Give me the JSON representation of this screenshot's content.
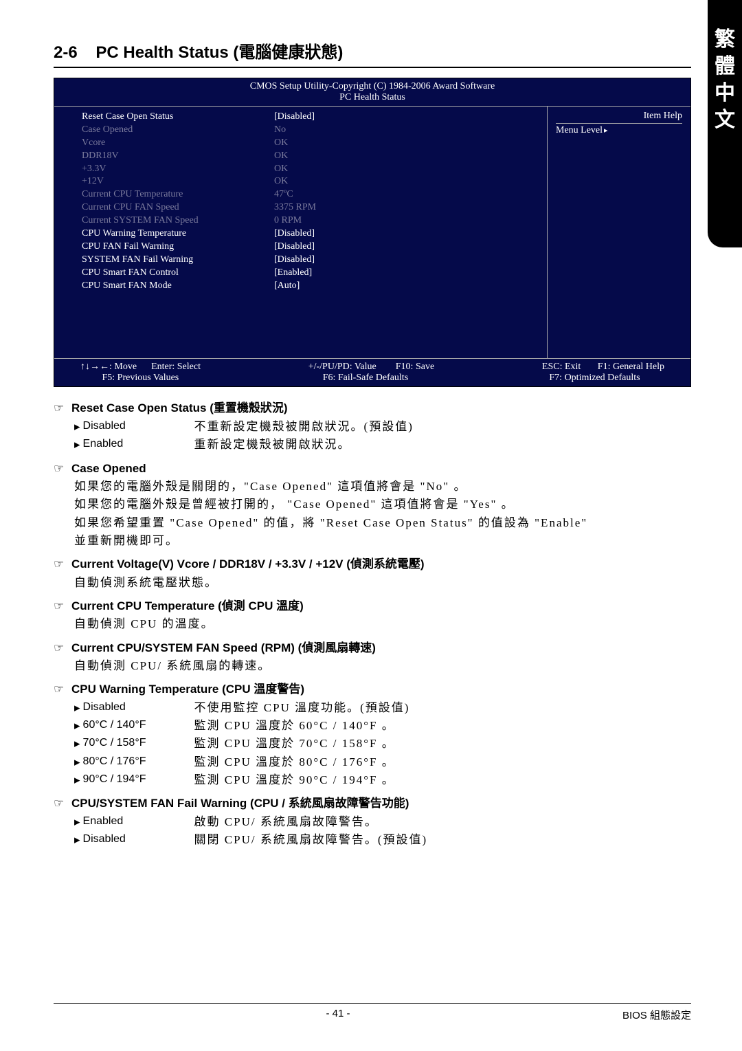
{
  "side_tab": [
    "繁",
    "體",
    "中",
    "文"
  ],
  "section": {
    "number": "2-6",
    "title_en": "PC Health Status (",
    "title_cjk": "電腦健康狀態",
    "title_close": ")"
  },
  "bios": {
    "header_line1": "CMOS Setup Utility-Copyright (C) 1984-2006 Award Software",
    "header_line2": "PC Health Status",
    "item_help": "Item Help",
    "menu_level": "Menu Level",
    "rows": [
      {
        "label": "Reset Case Open Status",
        "value": "[Disabled]",
        "dim": false
      },
      {
        "label": "Case Opened",
        "value": "No",
        "dim": true
      },
      {
        "label": "Vcore",
        "value": "OK",
        "dim": true
      },
      {
        "label": "DDR18V",
        "value": "OK",
        "dim": true
      },
      {
        "label": "+3.3V",
        "value": "OK",
        "dim": true
      },
      {
        "label": "+12V",
        "value": "OK",
        "dim": true
      },
      {
        "label": "Current CPU Temperature",
        "value": "47ºC",
        "dim": true
      },
      {
        "label": "Current CPU FAN Speed",
        "value": "3375 RPM",
        "dim": true
      },
      {
        "label": "Current SYSTEM FAN Speed",
        "value": "0     RPM",
        "dim": true
      },
      {
        "label": "CPU Warning Temperature",
        "value": "[Disabled]",
        "dim": false
      },
      {
        "label": "CPU FAN Fail Warning",
        "value": "[Disabled]",
        "dim": false
      },
      {
        "label": "SYSTEM FAN Fail Warning",
        "value": "[Disabled]",
        "dim": false
      },
      {
        "label": "CPU Smart FAN Control",
        "value": "[Enabled]",
        "dim": false
      },
      {
        "label": "CPU Smart FAN Mode",
        "value": "[Auto]",
        "dim": false
      }
    ],
    "footer": {
      "c1a": "↑↓→←: Move",
      "c1b": "Enter: Select",
      "c2a": "+/-/PU/PD: Value",
      "c2b": "F10: Save",
      "c3a": "ESC: Exit",
      "c3b": "F1: General Help",
      "r2a": "F5: Previous Values",
      "r2b": "F6: Fail-Safe Defaults",
      "r2c": "F7: Optimized Defaults"
    }
  },
  "items": {
    "reset": {
      "title": "Reset Case Open Status (重置機殼狀況)",
      "opts": [
        {
          "k": "Disabled",
          "v": "不重新設定機殼被開啟狀況。(預設值)"
        },
        {
          "k": "Enabled",
          "v": "重新設定機殼被開啟狀況。"
        }
      ]
    },
    "caseopened": {
      "title": "Case Opened",
      "desc": [
        "如果您的電腦外殼是關閉的，\"Case Opened\" 這項值將會是 \"No\" 。",
        "如果您的電腦外殼是曾經被打開的， \"Case Opened\" 這項值將會是 \"Yes\" 。",
        "如果您希望重置 \"Case Opened\" 的值，將 \"Reset Case Open Status\" 的值設為 \"Enable\"",
        "並重新開機即可。"
      ]
    },
    "voltage": {
      "title": "Current Voltage(V) Vcore / DDR18V / +3.3V / +12V (偵測系統電壓)",
      "desc": [
        "自動偵測系統電壓狀態。"
      ]
    },
    "cputemp": {
      "title": "Current CPU Temperature (偵測 CPU 溫度)",
      "desc": [
        "自動偵測 CPU 的溫度。"
      ]
    },
    "fanspeed": {
      "title": "Current CPU/SYSTEM FAN Speed (RPM) (偵測風扇轉速)",
      "desc": [
        "自動偵測 CPU/ 系統風扇的轉速。"
      ]
    },
    "warntemp": {
      "title": "CPU Warning Temperature (CPU 溫度警告)",
      "opts": [
        {
          "k": "Disabled",
          "v": "不使用監控 CPU 溫度功能。(預設值)"
        },
        {
          "k": "60°C / 140°F",
          "v": "監測 CPU 溫度於 60°C / 140°F 。"
        },
        {
          "k": "70°C / 158°F",
          "v": "監測 CPU 溫度於 70°C / 158°F 。"
        },
        {
          "k": "80°C / 176°F",
          "v": "監測 CPU 溫度於 80°C / 176°F 。"
        },
        {
          "k": "90°C / 194°F",
          "v": "監測 CPU 溫度於 90°C / 194°F 。"
        }
      ]
    },
    "fanfail": {
      "title": "CPU/SYSTEM FAN Fail Warning (CPU / 系統風扇故障警告功能)",
      "opts": [
        {
          "k": "Enabled",
          "v": "啟動 CPU/ 系統風扇故障警告。"
        },
        {
          "k": "Disabled",
          "v": "關閉 CPU/ 系統風扇故障警告。(預設值)"
        }
      ]
    }
  },
  "footer": {
    "page": "- 41 -",
    "right": "BIOS 組態設定"
  }
}
